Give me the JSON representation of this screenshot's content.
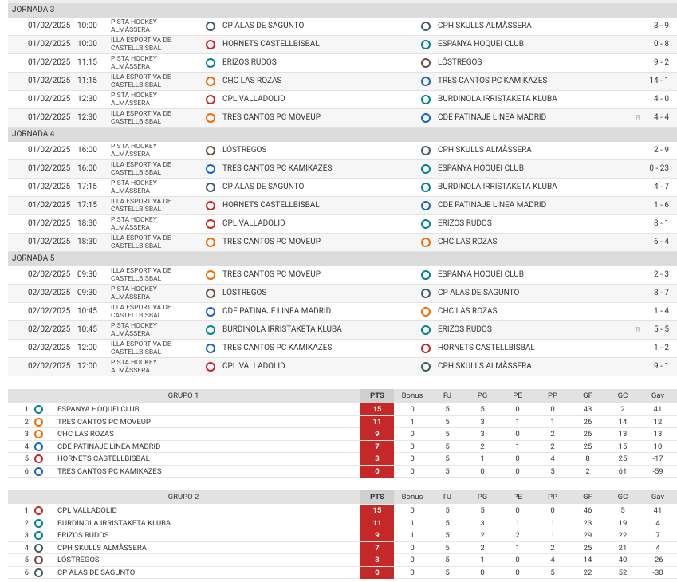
{
  "rounds": [
    {
      "title": "JORNADA 3",
      "matches": [
        {
          "date": "01/02/2025",
          "time": "10:00",
          "venue": "PISTA HOCKEY ALMÀSSERA",
          "home": "CP ALAS DE SAGUNTO",
          "away": "CPH SKULLS ALMÀSSERA",
          "score": "3 - 9"
        },
        {
          "date": "01/02/2025",
          "time": "10:00",
          "venue": "ILLA ESPORTIVA DE CASTELLBISBAL",
          "home": "HORNETS CASTELLBISBAL",
          "away": "ESPANYA HOQUEI CLUB",
          "score": "0 - 8"
        },
        {
          "date": "01/02/2025",
          "time": "11:15",
          "venue": "PISTA HOCKEY ALMÀSSERA",
          "home": "ERIZOS RUDOS",
          "away": "LÓSTREGOS",
          "score": "9 - 2"
        },
        {
          "date": "01/02/2025",
          "time": "11:15",
          "venue": "ILLA ESPORTIVA DE CASTELLBISBAL",
          "home": "CHC LAS ROZAS",
          "away": "TRES CANTOS PC KAMIKAZES",
          "score": "14 - 1"
        },
        {
          "date": "01/02/2025",
          "time": "12:30",
          "venue": "PISTA HOCKEY ALMÀSSERA",
          "home": "CPL VALLADOLID",
          "away": "BURDINOLA IRRISTAKETA KLUBA",
          "score": "4 - 0"
        },
        {
          "date": "01/02/2025",
          "time": "12:30",
          "venue": "ILLA ESPORTIVA DE CASTELLBISBAL",
          "home": "TRES CANTOS PC MOVEUP",
          "away": "CDE PATINAJE LINEA MADRID",
          "flag": "B",
          "score": "4 - 4"
        }
      ]
    },
    {
      "title": "JORNADA 4",
      "matches": [
        {
          "date": "01/02/2025",
          "time": "16:00",
          "venue": "PISTA HOCKEY ALMÀSSERA",
          "home": "LÓSTREGOS",
          "away": "CPH SKULLS ALMÀSSERA",
          "score": "2 - 9"
        },
        {
          "date": "01/02/2025",
          "time": "16:00",
          "venue": "ILLA ESPORTIVA DE CASTELLBISBAL",
          "home": "TRES CANTOS PC KAMIKAZES",
          "away": "ESPANYA HOQUEI CLUB",
          "score": "0 - 23"
        },
        {
          "date": "01/02/2025",
          "time": "17:15",
          "venue": "PISTA HOCKEY ALMÀSSERA",
          "home": "CP ALAS DE SAGUNTO",
          "away": "BURDINOLA IRRISTAKETA KLUBA",
          "score": "4 - 7"
        },
        {
          "date": "01/02/2025",
          "time": "17:15",
          "venue": "ILLA ESPORTIVA DE CASTELLBISBAL",
          "home": "HORNETS CASTELLBISBAL",
          "away": "CDE PATINAJE LINEA MADRID",
          "score": "1 - 6"
        },
        {
          "date": "01/02/2025",
          "time": "18:30",
          "venue": "PISTA HOCKEY ALMÀSSERA",
          "home": "CPL VALLADOLID",
          "away": "ERIZOS RUDOS",
          "score": "8 - 1"
        },
        {
          "date": "01/02/2025",
          "time": "18:30",
          "venue": "ILLA ESPORTIVA DE CASTELLBISBAL",
          "home": "TRES CANTOS PC MOVEUP",
          "away": "CHC LAS ROZAS",
          "score": "6 - 4"
        }
      ]
    },
    {
      "title": "JORNADA 5",
      "matches": [
        {
          "date": "02/02/2025",
          "time": "09:30",
          "venue": "ILLA ESPORTIVA DE CASTELLBISBAL",
          "home": "TRES CANTOS PC MOVEUP",
          "away": "ESPANYA HOQUEI CLUB",
          "score": "2 - 3"
        },
        {
          "date": "02/02/2025",
          "time": "09:30",
          "venue": "PISTA HOCKEY ALMÀSSERA",
          "home": "LÓSTREGOS",
          "away": "CP ALAS DE SAGUNTO",
          "score": "8 - 7"
        },
        {
          "date": "02/02/2025",
          "time": "10:45",
          "venue": "ILLA ESPORTIVA DE CASTELLBISBAL",
          "home": "CDE PATINAJE LINEA MADRID",
          "away": "CHC LAS ROZAS",
          "score": "1 - 4"
        },
        {
          "date": "02/02/2025",
          "time": "10:45",
          "venue": "PISTA HOCKEY ALMÀSSERA",
          "home": "BURDINOLA IRRISTAKETA KLUBA",
          "away": "ERIZOS RUDOS",
          "flag": "B",
          "score": "5 - 5"
        },
        {
          "date": "02/02/2025",
          "time": "12:00",
          "venue": "ILLA ESPORTIVA DE CASTELLBISBAL",
          "home": "TRES CANTOS PC KAMIKAZES",
          "away": "HORNETS CASTELLBISBAL",
          "score": "1 - 2"
        },
        {
          "date": "02/02/2025",
          "time": "12:00",
          "venue": "PISTA HOCKEY ALMÀSSERA",
          "home": "CPL VALLADOLID",
          "away": "CPH SKULLS ALMÀSSERA",
          "score": "9 - 1"
        }
      ]
    }
  ],
  "standings": [
    {
      "title": "GRUPO 1",
      "columns": [
        "PTS",
        "Bonus",
        "PJ",
        "PG",
        "PE",
        "PP",
        "GF",
        "GC",
        "Gav"
      ],
      "rows": [
        [
          1,
          "ESPANYA HOQUEI CLUB",
          15,
          0,
          5,
          5,
          0,
          0,
          43,
          2,
          41
        ],
        [
          2,
          "TRES CANTOS PC MOVEUP",
          11,
          1,
          5,
          3,
          1,
          1,
          26,
          14,
          12
        ],
        [
          3,
          "CHC LAS ROZAS",
          9,
          0,
          5,
          3,
          0,
          2,
          26,
          13,
          13
        ],
        [
          4,
          "CDE PATINAJE LINEA MADRID",
          7,
          0,
          5,
          2,
          1,
          2,
          25,
          15,
          10
        ],
        [
          5,
          "HORNETS CASTELLBISBAL",
          3,
          0,
          5,
          1,
          0,
          4,
          8,
          25,
          -17
        ],
        [
          6,
          "TRES CANTOS PC KAMIKAZES",
          0,
          0,
          5,
          0,
          0,
          5,
          2,
          61,
          -59
        ]
      ]
    },
    {
      "title": "GRUPO 2",
      "columns": [
        "PTS",
        "Bonus",
        "PJ",
        "PG",
        "PE",
        "PP",
        "GF",
        "GC",
        "Gav"
      ],
      "rows": [
        [
          1,
          "CPL VALLADOLID",
          15,
          0,
          5,
          5,
          0,
          0,
          46,
          5,
          41
        ],
        [
          2,
          "BURDINOLA IRRISTAKETA KLUBA",
          11,
          1,
          5,
          3,
          1,
          1,
          23,
          19,
          4
        ],
        [
          3,
          "ERIZOS RUDOS",
          9,
          1,
          5,
          2,
          2,
          1,
          29,
          22,
          7
        ],
        [
          4,
          "CPH SKULLS ALMÀSSERA",
          7,
          0,
          5,
          2,
          1,
          2,
          25,
          21,
          4
        ],
        [
          5,
          "LÓSTREGOS",
          3,
          0,
          5,
          1,
          0,
          4,
          14,
          40,
          -26
        ],
        [
          6,
          "CP ALAS DE SAGUNTO",
          0,
          0,
          5,
          0,
          0,
          5,
          22,
          52,
          -30
        ]
      ]
    }
  ]
}
